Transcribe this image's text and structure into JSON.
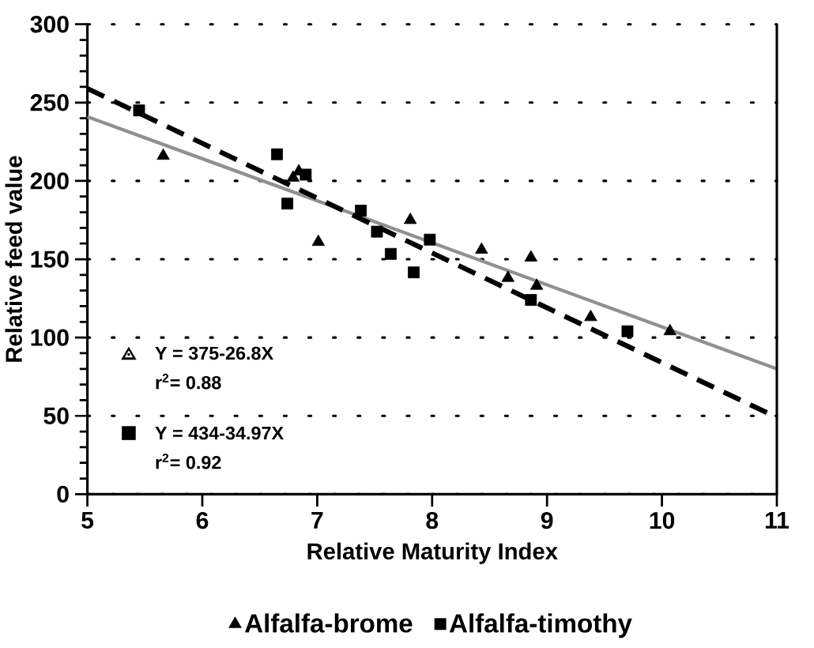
{
  "chart_data": {
    "type": "scatter",
    "xlabel": "Relative Maturity Index",
    "ylabel": "Relative feed value",
    "xlim": [
      5,
      11
    ],
    "ylim": [
      0,
      300
    ],
    "xticks": [
      5,
      6,
      7,
      8,
      9,
      10,
      11
    ],
    "yticks": [
      0,
      50,
      100,
      150,
      200,
      250,
      300
    ],
    "grid": "y",
    "legend": "bottom",
    "series": [
      {
        "name": "Alfalfa-brome",
        "color": "#000000",
        "marker": "triangle",
        "x": [
          5.66,
          6.79,
          6.84,
          7.01,
          7.81,
          8.43,
          8.66,
          8.86,
          8.91,
          9.38,
          10.07
        ],
        "values": [
          216,
          202,
          206,
          161,
          175,
          156,
          138,
          151,
          133,
          113,
          104
        ]
      },
      {
        "name": "Alfalfa-timothy",
        "color": "#000000",
        "marker": "square",
        "x": [
          5.45,
          6.65,
          6.74,
          6.9,
          7.38,
          7.52,
          7.64,
          7.84,
          7.98,
          8.86,
          9.7
        ],
        "values": [
          245,
          217,
          185.5,
          204,
          181,
          167.6,
          153.4,
          141.6,
          162.5,
          124,
          104
        ]
      },
      {
        "type": "line",
        "color": "#909090",
        "marker": "none",
        "line_style": "solid",
        "x": [
          5,
          11
        ],
        "values": [
          241,
          80
        ]
      },
      {
        "type": "line",
        "color": "#000000",
        "marker": "none",
        "line_style": "dashed",
        "x": [
          5,
          11
        ],
        "values": [
          259,
          49
        ]
      }
    ],
    "annotations": [
      "Y = 375-26.8X",
      "r$^{2}$= 0.88",
      "Y = 434-34.97X",
      "r$^{2}$= 0.92"
    ]
  }
}
